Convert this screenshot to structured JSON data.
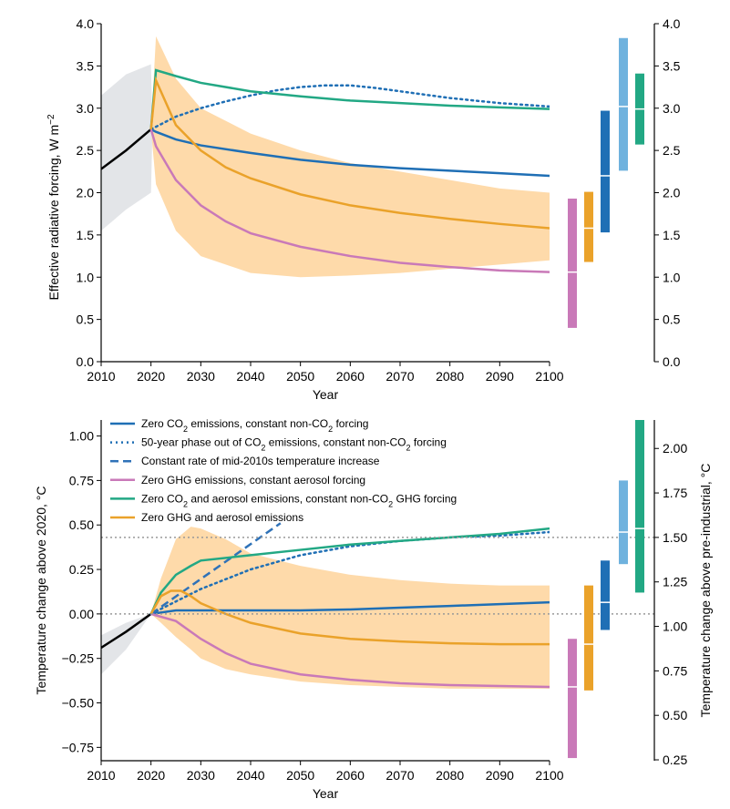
{
  "colors": {
    "zero_co2": "#1f6fb5",
    "phase_out": "#1f6fb5",
    "constant_rate": "#2f72b8",
    "zero_ghg": "#c979b8",
    "zero_co2_aerosol": "#22a884",
    "zero_ghg_aerosol": "#eaa22a",
    "uncertainty": "#fed8a5",
    "history_band": "#e3e5e8",
    "history": "#000000",
    "bar_light_blue": "#6fb2de",
    "reference": "#999999"
  },
  "chart_data": [
    {
      "type": "line",
      "xlabel": "Year",
      "ylabel_main": "Effective radiative forcing, W m",
      "ylabel_sup": "−2",
      "xlim": [
        2010,
        2100
      ],
      "ylim": [
        0,
        4
      ],
      "xticks": [
        "2010",
        "2020",
        "2030",
        "2040",
        "2050",
        "2060",
        "2070",
        "2080",
        "2090",
        "2100"
      ],
      "yticks": [
        "0.0",
        "0.5",
        "1.0",
        "1.5",
        "2.0",
        "2.5",
        "3.0",
        "3.5",
        "4.0"
      ],
      "right_yticks": [
        "0.0",
        "0.5",
        "1.0",
        "1.5",
        "2.0",
        "2.5",
        "3.0",
        "3.5",
        "4.0"
      ],
      "history": {
        "x": [
          2010,
          2015,
          2020
        ],
        "y": [
          2.28,
          2.5,
          2.75
        ]
      },
      "history_band": {
        "x": [
          2010,
          2015,
          2020,
          2020.3
        ],
        "lower": [
          1.55,
          1.8,
          2.0,
          2.75
        ],
        "upper": [
          3.15,
          3.4,
          3.52,
          2.75
        ]
      },
      "uncertainty_band": {
        "x": [
          2020,
          2021,
          2025,
          2030,
          2040,
          2050,
          2060,
          2070,
          2080,
          2090,
          2100
        ],
        "lower": [
          2.75,
          2.1,
          1.55,
          1.25,
          1.05,
          1.0,
          1.02,
          1.05,
          1.1,
          1.15,
          1.2
        ],
        "upper": [
          2.75,
          3.85,
          3.35,
          3.0,
          2.7,
          2.5,
          2.35,
          2.25,
          2.15,
          2.05,
          2.0
        ]
      },
      "series": [
        {
          "key": "zero_co2",
          "style": "solid",
          "x": [
            2020,
            2021,
            2025,
            2030,
            2040,
            2050,
            2060,
            2070,
            2080,
            2090,
            2100
          ],
          "y": [
            2.75,
            2.72,
            2.63,
            2.56,
            2.47,
            2.39,
            2.33,
            2.29,
            2.26,
            2.23,
            2.2
          ]
        },
        {
          "key": "phase_out",
          "style": "dotted",
          "x": [
            2020,
            2025,
            2030,
            2035,
            2040,
            2045,
            2050,
            2055,
            2060,
            2065,
            2070,
            2075,
            2080,
            2085,
            2090,
            2095,
            2100
          ],
          "y": [
            2.75,
            2.9,
            3.0,
            3.08,
            3.15,
            3.21,
            3.25,
            3.27,
            3.27,
            3.24,
            3.2,
            3.16,
            3.12,
            3.09,
            3.06,
            3.04,
            3.02
          ]
        },
        {
          "key": "zero_ghg",
          "style": "solid",
          "x": [
            2020,
            2021,
            2025,
            2030,
            2035,
            2040,
            2050,
            2060,
            2070,
            2080,
            2090,
            2100
          ],
          "y": [
            2.75,
            2.55,
            2.15,
            1.85,
            1.66,
            1.52,
            1.36,
            1.25,
            1.17,
            1.12,
            1.08,
            1.06
          ]
        },
        {
          "key": "zero_co2_aerosol",
          "style": "solid",
          "x": [
            2020,
            2021,
            2025,
            2030,
            2040,
            2050,
            2060,
            2070,
            2080,
            2090,
            2100
          ],
          "y": [
            2.75,
            3.45,
            3.38,
            3.3,
            3.2,
            3.14,
            3.09,
            3.06,
            3.03,
            3.01,
            2.99
          ]
        },
        {
          "key": "zero_ghg_aerosol",
          "style": "solid",
          "x": [
            2020,
            2021,
            2025,
            2030,
            2035,
            2040,
            2050,
            2060,
            2070,
            2080,
            2090,
            2100
          ],
          "y": [
            2.75,
            3.33,
            2.8,
            2.5,
            2.3,
            2.17,
            1.98,
            1.85,
            1.76,
            1.69,
            1.63,
            1.58
          ]
        }
      ],
      "bars": [
        {
          "key": "zero_ghg",
          "low": 0.4,
          "mid": 1.06,
          "high": 1.93
        },
        {
          "key": "zero_ghg_aerosol",
          "low": 1.18,
          "mid": 1.58,
          "high": 2.01
        },
        {
          "key": "zero_co2",
          "low": 1.53,
          "mid": 2.2,
          "high": 2.97
        },
        {
          "key": "bar_light_blue",
          "low": 2.26,
          "mid": 3.02,
          "high": 3.83
        },
        {
          "key": "zero_co2_aerosol",
          "low": 2.57,
          "mid": 2.99,
          "high": 3.41
        }
      ]
    },
    {
      "type": "line",
      "xlabel": "Year",
      "ylabel": "Temperature change above 2020, °C",
      "right_ylabel": "Temperature change above pre-industrial, °C",
      "xlim": [
        2010,
        2100
      ],
      "ylim": [
        -0.825,
        1.09
      ],
      "xticks": [
        "2010",
        "2020",
        "2030",
        "2040",
        "2050",
        "2060",
        "2070",
        "2080",
        "2090",
        "2100"
      ],
      "yticks": [
        "−0.75",
        "−0.50",
        "−0.25",
        "0.00",
        "0.25",
        "0.50",
        "0.75",
        "1.00"
      ],
      "right_yticks": [
        "0.25",
        "0.50",
        "0.75",
        "1.00",
        "1.25",
        "1.50",
        "1.75",
        "2.00"
      ],
      "right_offset": 1.07,
      "reference_lines": [
        0.0,
        0.43
      ],
      "history": {
        "x": [
          2010,
          2015,
          2020
        ],
        "y": [
          -0.19,
          -0.1,
          0.0
        ]
      },
      "history_band": {
        "x": [
          2010,
          2015,
          2020
        ],
        "lower": [
          -0.34,
          -0.2,
          0.0
        ],
        "upper": [
          -0.12,
          -0.05,
          0.0
        ]
      },
      "uncertainty_band": {
        "x": [
          2020,
          2022,
          2025,
          2028,
          2030,
          2035,
          2040,
          2050,
          2060,
          2070,
          2080,
          2090,
          2100
        ],
        "lower": [
          0.0,
          -0.05,
          -0.13,
          -0.2,
          -0.25,
          -0.31,
          -0.34,
          -0.38,
          -0.4,
          -0.41,
          -0.42,
          -0.42,
          -0.42
        ],
        "upper": [
          0.0,
          0.2,
          0.42,
          0.49,
          0.48,
          0.42,
          0.34,
          0.27,
          0.22,
          0.19,
          0.17,
          0.16,
          0.16
        ]
      },
      "series": [
        {
          "key": "zero_co2",
          "style": "solid",
          "x": [
            2020,
            2025,
            2030,
            2040,
            2050,
            2060,
            2070,
            2080,
            2090,
            2100
          ],
          "y": [
            0.0,
            0.02,
            0.02,
            0.02,
            0.02,
            0.025,
            0.035,
            0.045,
            0.055,
            0.065
          ]
        },
        {
          "key": "phase_out",
          "style": "dotted",
          "x": [
            2020,
            2025,
            2030,
            2040,
            2050,
            2060,
            2070,
            2080,
            2090,
            2100
          ],
          "y": [
            0.0,
            0.07,
            0.14,
            0.25,
            0.33,
            0.38,
            0.41,
            0.43,
            0.44,
            0.46
          ]
        },
        {
          "key": "constant_rate",
          "style": "dashed",
          "x": [
            2020,
            2046
          ],
          "y": [
            0.0,
            0.51
          ]
        },
        {
          "key": "zero_ghg",
          "style": "solid",
          "x": [
            2020,
            2025,
            2030,
            2035,
            2040,
            2050,
            2060,
            2070,
            2080,
            2090,
            2100
          ],
          "y": [
            0.0,
            -0.04,
            -0.14,
            -0.22,
            -0.28,
            -0.34,
            -0.37,
            -0.39,
            -0.4,
            -0.405,
            -0.41
          ]
        },
        {
          "key": "zero_co2_aerosol",
          "style": "solid",
          "x": [
            2020,
            2022,
            2025,
            2028,
            2030,
            2040,
            2050,
            2060,
            2070,
            2080,
            2090,
            2100
          ],
          "y": [
            0.0,
            0.12,
            0.22,
            0.27,
            0.3,
            0.33,
            0.36,
            0.39,
            0.41,
            0.43,
            0.45,
            0.48
          ]
        },
        {
          "key": "zero_ghg_aerosol",
          "style": "solid",
          "x": [
            2020,
            2022,
            2024,
            2026,
            2028,
            2030,
            2035,
            2040,
            2050,
            2060,
            2070,
            2080,
            2090,
            2100
          ],
          "y": [
            0.0,
            0.1,
            0.13,
            0.13,
            0.1,
            0.06,
            0.0,
            -0.05,
            -0.11,
            -0.14,
            -0.155,
            -0.165,
            -0.17,
            -0.17
          ]
        }
      ],
      "bars": [
        {
          "key": "zero_ghg",
          "low": -0.81,
          "mid": -0.41,
          "high": -0.14
        },
        {
          "key": "zero_ghg_aerosol",
          "low": -0.43,
          "mid": -0.17,
          "high": 0.16
        },
        {
          "key": "zero_co2",
          "low": -0.09,
          "mid": 0.065,
          "high": 0.3
        },
        {
          "key": "bar_light_blue",
          "low": 0.28,
          "mid": 0.46,
          "high": 0.75
        },
        {
          "key": "zero_co2_aerosol",
          "low": 0.12,
          "mid": 0.48,
          "high": 1.09
        }
      ]
    }
  ],
  "legend": [
    {
      "key": "zero_co2",
      "style": "solid",
      "parts": [
        [
          "Zero CO",
          ""
        ],
        [
          "2",
          "sub"
        ],
        [
          " emissions, constant non-CO",
          ""
        ],
        [
          "2",
          "sub"
        ],
        [
          " forcing",
          ""
        ]
      ]
    },
    {
      "key": "phase_out",
      "style": "dotted",
      "parts": [
        [
          "50-year phase out of CO",
          ""
        ],
        [
          "2",
          "sub"
        ],
        [
          " emissions, constant non-CO",
          ""
        ],
        [
          "2",
          "sub"
        ],
        [
          " forcing",
          ""
        ]
      ]
    },
    {
      "key": "constant_rate",
      "style": "dashed",
      "parts": [
        [
          "Constant rate of mid-2010s temperature increase",
          ""
        ]
      ]
    },
    {
      "key": "zero_ghg",
      "style": "solid",
      "parts": [
        [
          "Zero GHG emissions, constant aerosol forcing",
          ""
        ]
      ]
    },
    {
      "key": "zero_co2_aerosol",
      "style": "solid",
      "parts": [
        [
          "Zero CO",
          ""
        ],
        [
          "2",
          "sub"
        ],
        [
          " and aerosol emissions, constant non-CO",
          ""
        ],
        [
          "2",
          "sub"
        ],
        [
          " GHG forcing",
          ""
        ]
      ]
    },
    {
      "key": "zero_ghg_aerosol",
      "style": "solid",
      "parts": [
        [
          "Zero GHG and aerosol emissions",
          ""
        ]
      ]
    }
  ]
}
